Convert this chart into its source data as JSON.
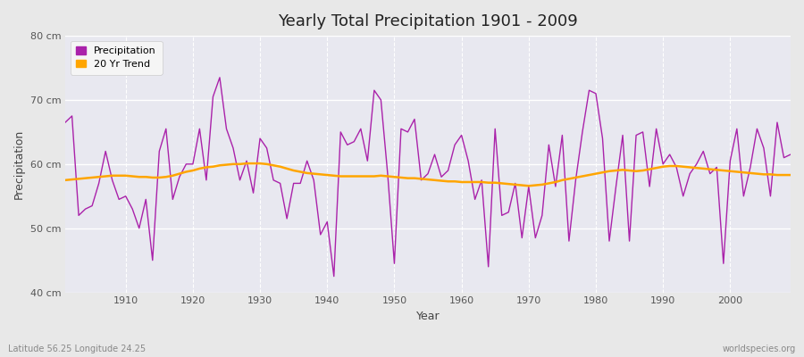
{
  "title": "Yearly Total Precipitation 1901 - 2009",
  "xlabel": "Year",
  "ylabel": "Precipitation",
  "subtitle": "Latitude 56.25 Longitude 24.25",
  "watermark": "worldspecies.org",
  "ylim": [
    40,
    80
  ],
  "yticks": [
    40,
    50,
    60,
    70,
    80
  ],
  "ytick_labels": [
    "40 cm",
    "50 cm",
    "60 cm",
    "70 cm",
    "80 cm"
  ],
  "xticks": [
    1910,
    1920,
    1930,
    1940,
    1950,
    1960,
    1970,
    1980,
    1990,
    2000
  ],
  "xlim": [
    1901,
    2009
  ],
  "precip_color": "#aa22aa",
  "trend_color": "#FFA500",
  "fig_bg_color": "#e8e8e8",
  "plot_bg_color": "#e8e8f0",
  "legend_bg": "#f5f5f5",
  "grid_color": "#ffffff",
  "years": [
    1901,
    1902,
    1903,
    1904,
    1905,
    1906,
    1907,
    1908,
    1909,
    1910,
    1911,
    1912,
    1913,
    1914,
    1915,
    1916,
    1917,
    1918,
    1919,
    1920,
    1921,
    1922,
    1923,
    1924,
    1925,
    1926,
    1927,
    1928,
    1929,
    1930,
    1931,
    1932,
    1933,
    1934,
    1935,
    1936,
    1937,
    1938,
    1939,
    1940,
    1941,
    1942,
    1943,
    1944,
    1945,
    1946,
    1947,
    1948,
    1949,
    1950,
    1951,
    1952,
    1953,
    1954,
    1955,
    1956,
    1957,
    1958,
    1959,
    1960,
    1961,
    1962,
    1963,
    1964,
    1965,
    1966,
    1967,
    1968,
    1969,
    1970,
    1971,
    1972,
    1973,
    1974,
    1975,
    1976,
    1977,
    1978,
    1979,
    1980,
    1981,
    1982,
    1983,
    1984,
    1985,
    1986,
    1987,
    1988,
    1989,
    1990,
    1991,
    1992,
    1993,
    1994,
    1995,
    1996,
    1997,
    1998,
    1999,
    2000,
    2001,
    2002,
    2003,
    2004,
    2005,
    2006,
    2007,
    2008,
    2009
  ],
  "precip": [
    66.5,
    67.5,
    52.0,
    53.0,
    53.5,
    57.0,
    62.0,
    57.5,
    54.5,
    55.0,
    53.0,
    50.0,
    54.5,
    45.0,
    62.0,
    65.5,
    54.5,
    58.0,
    60.0,
    60.0,
    65.5,
    57.5,
    70.5,
    73.5,
    65.5,
    62.5,
    57.5,
    60.5,
    55.5,
    64.0,
    62.5,
    57.5,
    57.0,
    51.5,
    57.0,
    57.0,
    60.5,
    57.5,
    49.0,
    51.0,
    42.5,
    65.0,
    63.0,
    63.5,
    65.5,
    60.5,
    71.5,
    70.0,
    58.5,
    44.5,
    65.5,
    65.0,
    67.0,
    57.5,
    58.5,
    61.5,
    58.0,
    59.0,
    63.0,
    64.5,
    60.5,
    54.5,
    57.5,
    44.0,
    65.5,
    52.0,
    52.5,
    57.0,
    48.5,
    56.5,
    48.5,
    52.0,
    63.0,
    56.5,
    64.5,
    48.0,
    57.5,
    65.0,
    71.5,
    71.0,
    64.0,
    48.0,
    56.5,
    64.5,
    48.0,
    64.5,
    65.0,
    56.5,
    65.5,
    60.0,
    61.5,
    59.5,
    55.0,
    58.5,
    60.0,
    62.0,
    58.5,
    59.5,
    44.5,
    60.5,
    65.5,
    55.0,
    59.5,
    65.5,
    62.5,
    55.0,
    66.5,
    61.0,
    61.5
  ],
  "trend": [
    57.5,
    57.6,
    57.7,
    57.8,
    57.9,
    58.0,
    58.1,
    58.2,
    58.2,
    58.2,
    58.1,
    58.0,
    58.0,
    57.9,
    57.9,
    58.0,
    58.2,
    58.5,
    58.8,
    59.0,
    59.3,
    59.5,
    59.6,
    59.8,
    59.9,
    60.0,
    60.0,
    60.1,
    60.1,
    60.1,
    60.0,
    59.8,
    59.6,
    59.3,
    59.0,
    58.8,
    58.6,
    58.5,
    58.4,
    58.3,
    58.2,
    58.1,
    58.1,
    58.1,
    58.1,
    58.1,
    58.1,
    58.2,
    58.1,
    58.0,
    57.9,
    57.8,
    57.8,
    57.7,
    57.6,
    57.5,
    57.4,
    57.3,
    57.3,
    57.2,
    57.2,
    57.2,
    57.2,
    57.1,
    57.1,
    57.0,
    56.9,
    56.8,
    56.7,
    56.6,
    56.7,
    56.8,
    57.0,
    57.2,
    57.5,
    57.7,
    57.9,
    58.1,
    58.3,
    58.5,
    58.7,
    58.9,
    59.0,
    59.1,
    59.0,
    58.9,
    59.0,
    59.2,
    59.4,
    59.6,
    59.7,
    59.7,
    59.6,
    59.5,
    59.4,
    59.3,
    59.2,
    59.1,
    59.0,
    58.9,
    58.8,
    58.7,
    58.6,
    58.5,
    58.4,
    58.4,
    58.3,
    58.3,
    58.3
  ]
}
